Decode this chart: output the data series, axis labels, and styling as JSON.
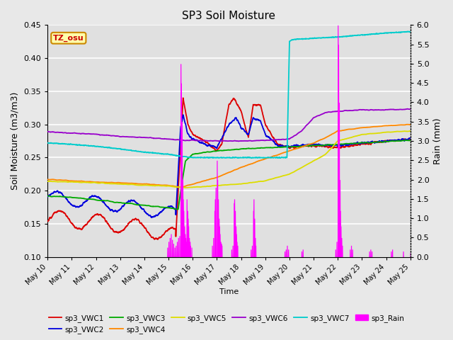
{
  "title": "SP3 Soil Moisture",
  "xlabel": "Time",
  "ylabel_left": "Soil Moisture (m3/m3)",
  "ylabel_right": "Rain (mm)",
  "ylim_left": [
    0.1,
    0.45
  ],
  "ylim_right": [
    0.0,
    6.0
  ],
  "background_color": "#e8e8e8",
  "plot_bg_color": "#e0e0e0",
  "grid_color": "white",
  "tz_label": "TZ_osu",
  "tz_box_color": "#ffffaa",
  "tz_border_color": "#cc8800",
  "tz_text_color": "#cc0000",
  "series_colors": {
    "sp3_VWC1": "#dd0000",
    "sp3_VWC2": "#0000dd",
    "sp3_VWC3": "#00aa00",
    "sp3_VWC4": "#ff8800",
    "sp3_VWC5": "#dddd00",
    "sp3_VWC6": "#9900cc",
    "sp3_VWC7": "#00cccc",
    "sp3_Rain": "#ff00ff"
  },
  "xtick_labels": [
    "May 10",
    "May 11",
    "May 12",
    "May 13",
    "May 14",
    "May 15",
    "May 16",
    "May 17",
    "May 18",
    "May 19",
    "May 20",
    "May 21",
    "May 22",
    "May 23",
    "May 24",
    "May 25"
  ],
  "yticks_left": [
    0.1,
    0.15,
    0.2,
    0.25,
    0.3,
    0.35,
    0.4,
    0.45
  ],
  "yticks_right": [
    0.0,
    0.5,
    1.0,
    1.5,
    2.0,
    2.5,
    3.0,
    3.5,
    4.0,
    4.5,
    5.0,
    5.5,
    6.0
  ],
  "figsize": [
    6.4,
    4.8
  ],
  "dpi": 100
}
